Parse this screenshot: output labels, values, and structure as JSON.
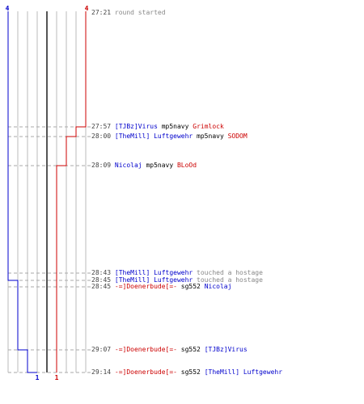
{
  "teams": {
    "blue": {
      "color": "#0000cc",
      "start_count": "4",
      "end_count": "1"
    },
    "red": {
      "color": "#cc0000",
      "start_count": "4",
      "end_count": "1"
    }
  },
  "events": [
    {
      "time": "27:21",
      "parts": [
        {
          "text": "round started",
          "c": "info"
        }
      ]
    },
    {
      "time": "27:57",
      "parts": [
        {
          "text": "[TJBz]Virus",
          "c": "blue"
        },
        {
          "text": " mp5navy ",
          "c": "text"
        },
        {
          "text": "Grimlock",
          "c": "red"
        }
      ]
    },
    {
      "time": "28:00",
      "parts": [
        {
          "text": "[TheMill] Luftgewehr",
          "c": "blue"
        },
        {
          "text": " mp5navy ",
          "c": "text"
        },
        {
          "text": "SODOM",
          "c": "red"
        }
      ]
    },
    {
      "time": "28:09",
      "parts": [
        {
          "text": "Nicolaj",
          "c": "blue"
        },
        {
          "text": " mp5navy ",
          "c": "text"
        },
        {
          "text": "BLoOd",
          "c": "red"
        }
      ]
    },
    {
      "time": "28:43",
      "parts": [
        {
          "text": "[TheMill] Luftgewehr",
          "c": "blue"
        },
        {
          "text": " touched a hostage",
          "c": "info"
        }
      ]
    },
    {
      "time": "28:45",
      "parts": [
        {
          "text": "[TheMill] Luftgewehr",
          "c": "blue"
        },
        {
          "text": " touched a hostage",
          "c": "info"
        }
      ]
    },
    {
      "time": "28:45",
      "parts": [
        {
          "text": "-=]Doenerbude[=-",
          "c": "red"
        },
        {
          "text": " sg552 ",
          "c": "text"
        },
        {
          "text": "Nicolaj",
          "c": "blue"
        }
      ]
    },
    {
      "time": "29:07",
      "parts": [
        {
          "text": "-=]Doenerbude[=-",
          "c": "red"
        },
        {
          "text": " sg552 ",
          "c": "text"
        },
        {
          "text": "[TJBz]Virus",
          "c": "blue"
        }
      ]
    },
    {
      "time": "29:14",
      "parts": [
        {
          "text": "-=]Doenerbude[=-",
          "c": "red"
        },
        {
          "text": " sg552 ",
          "c": "text"
        },
        {
          "text": "[TheMill] Luftgewehr",
          "c": "blue"
        }
      ]
    }
  ],
  "colors": {
    "text": "#000000",
    "info": "#888888",
    "time": "#444444",
    "grid": "#bbbbbb",
    "center": "#555555",
    "dash": "#aaaaaa"
  }
}
